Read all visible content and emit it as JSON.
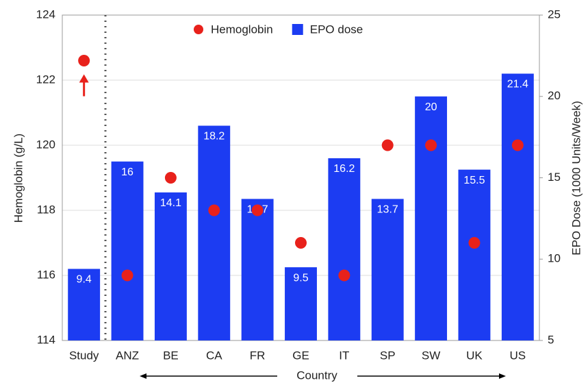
{
  "chart_data": {
    "type": "bar",
    "categories": [
      "Study",
      "ANZ",
      "BE",
      "CA",
      "FR",
      "GE",
      "IT",
      "SP",
      "SW",
      "UK",
      "US"
    ],
    "series": [
      {
        "name": "Hemoglobin",
        "type": "scatter",
        "color": "#e8211b",
        "values": [
          122.6,
          116,
          119,
          118,
          118,
          117,
          116,
          120,
          120,
          117,
          120
        ]
      },
      {
        "name": "EPO dose",
        "type": "bar",
        "color": "#1c3cf2",
        "axis": "y2",
        "values": [
          9.4,
          16,
          14.1,
          18.2,
          13.7,
          9.5,
          16.2,
          13.7,
          20,
          15.5,
          21.4
        ]
      }
    ],
    "ylabel": "Hemoglobin (g/L)",
    "y2label": "EPO Dose (1000 Units/Week)",
    "xlabel": "Country",
    "ylim": [
      114,
      124
    ],
    "yticks": [
      114,
      116,
      118,
      120,
      122,
      124
    ],
    "y2lim": [
      5,
      25
    ],
    "y2ticks": [
      5,
      10,
      15,
      20,
      25
    ],
    "grid": true,
    "legend": "top"
  }
}
